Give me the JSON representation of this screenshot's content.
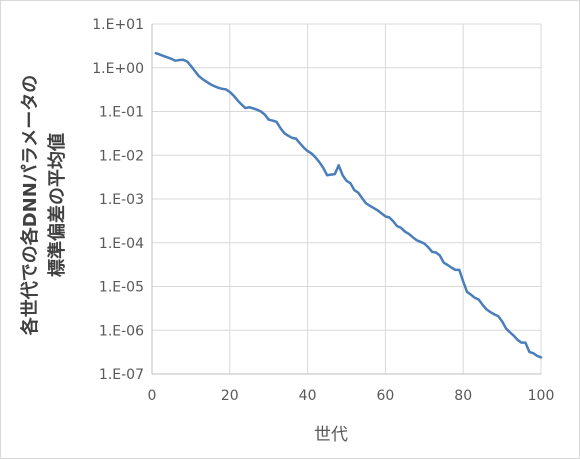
{
  "chart_data": {
    "type": "line",
    "title": "",
    "xlabel": "世代",
    "ylabel_lines": [
      "各世代での各DNNパラメータの",
      "標準偏差の平均値"
    ],
    "xlim": [
      0,
      100
    ],
    "ylim": [
      1e-07,
      10
    ],
    "yscale": "log",
    "grid": true,
    "legend": "none",
    "x_ticks": [
      {
        "value": 0,
        "label": "0"
      },
      {
        "value": 20,
        "label": "20"
      },
      {
        "value": 40,
        "label": "40"
      },
      {
        "value": 60,
        "label": "60"
      },
      {
        "value": 80,
        "label": "80"
      },
      {
        "value": 100,
        "label": "100"
      }
    ],
    "y_ticks": [
      {
        "value": 1e-07,
        "label": "1.E-07"
      },
      {
        "value": 1e-06,
        "label": "1.E-06"
      },
      {
        "value": 1e-05,
        "label": "1.E-05"
      },
      {
        "value": 0.0001,
        "label": "1.E-04"
      },
      {
        "value": 0.001,
        "label": "1.E-03"
      },
      {
        "value": 0.01,
        "label": "1.E-02"
      },
      {
        "value": 0.1,
        "label": "1.E-01"
      },
      {
        "value": 1,
        "label": "1.E+00"
      },
      {
        "value": 10,
        "label": "1.E+01"
      }
    ],
    "series": [
      {
        "color": "#4a7ebb",
        "x": [
          1,
          2,
          3,
          4,
          5,
          6,
          7,
          8,
          9,
          10,
          11,
          12,
          13,
          14,
          15,
          16,
          17,
          18,
          19,
          20,
          21,
          22,
          23,
          24,
          25,
          26,
          27,
          28,
          29,
          30,
          31,
          32,
          33,
          34,
          35,
          36,
          37,
          38,
          39,
          40,
          41,
          42,
          43,
          44,
          45,
          46,
          47,
          48,
          49,
          50,
          51,
          52,
          53,
          54,
          55,
          56,
          57,
          58,
          59,
          60,
          61,
          62,
          63,
          64,
          65,
          66,
          67,
          68,
          69,
          70,
          71,
          72,
          73,
          74,
          75,
          76,
          77,
          78,
          79,
          80,
          81,
          82,
          83,
          84,
          85,
          86,
          87,
          88,
          89,
          90,
          91,
          92,
          93,
          94,
          95,
          96,
          97,
          98,
          99,
          100
        ],
        "y": [
          2.15,
          2.0,
          1.85,
          1.72,
          1.6,
          1.45,
          1.5,
          1.52,
          1.4,
          1.1,
          0.85,
          0.65,
          0.55,
          0.48,
          0.42,
          0.38,
          0.35,
          0.33,
          0.32,
          0.28,
          0.23,
          0.18,
          0.145,
          0.12,
          0.125,
          0.118,
          0.11,
          0.1,
          0.085,
          0.065,
          0.062,
          0.058,
          0.042,
          0.032,
          0.028,
          0.025,
          0.024,
          0.019,
          0.015,
          0.0125,
          0.011,
          0.009,
          0.007,
          0.0052,
          0.0035,
          0.0036,
          0.0037,
          0.0059,
          0.0035,
          0.0026,
          0.0023,
          0.0016,
          0.0014,
          0.00105,
          0.0008,
          0.0007,
          0.00062,
          0.00055,
          0.00047,
          0.0004,
          0.00038,
          0.00031,
          0.00024,
          0.00022,
          0.00018,
          0.00016,
          0.000135,
          0.000115,
          0.000105,
          9.6e-05,
          7.9e-05,
          6.2e-05,
          6e-05,
          5.1e-05,
          3.5e-05,
          3.1e-05,
          2.7e-05,
          2.4e-05,
          2.4e-05,
          1.3e-05,
          7.5e-06,
          6.5e-06,
          5.5e-06,
          5e-06,
          3.8e-06,
          3e-06,
          2.6e-06,
          2.3e-06,
          2.1e-06,
          1.6e-06,
          1.1e-06,
          9e-07,
          7.5e-07,
          6e-07,
          5.2e-07,
          5.2e-07,
          3.2e-07,
          3e-07,
          2.6e-07,
          2.4e-07
        ]
      }
    ]
  }
}
